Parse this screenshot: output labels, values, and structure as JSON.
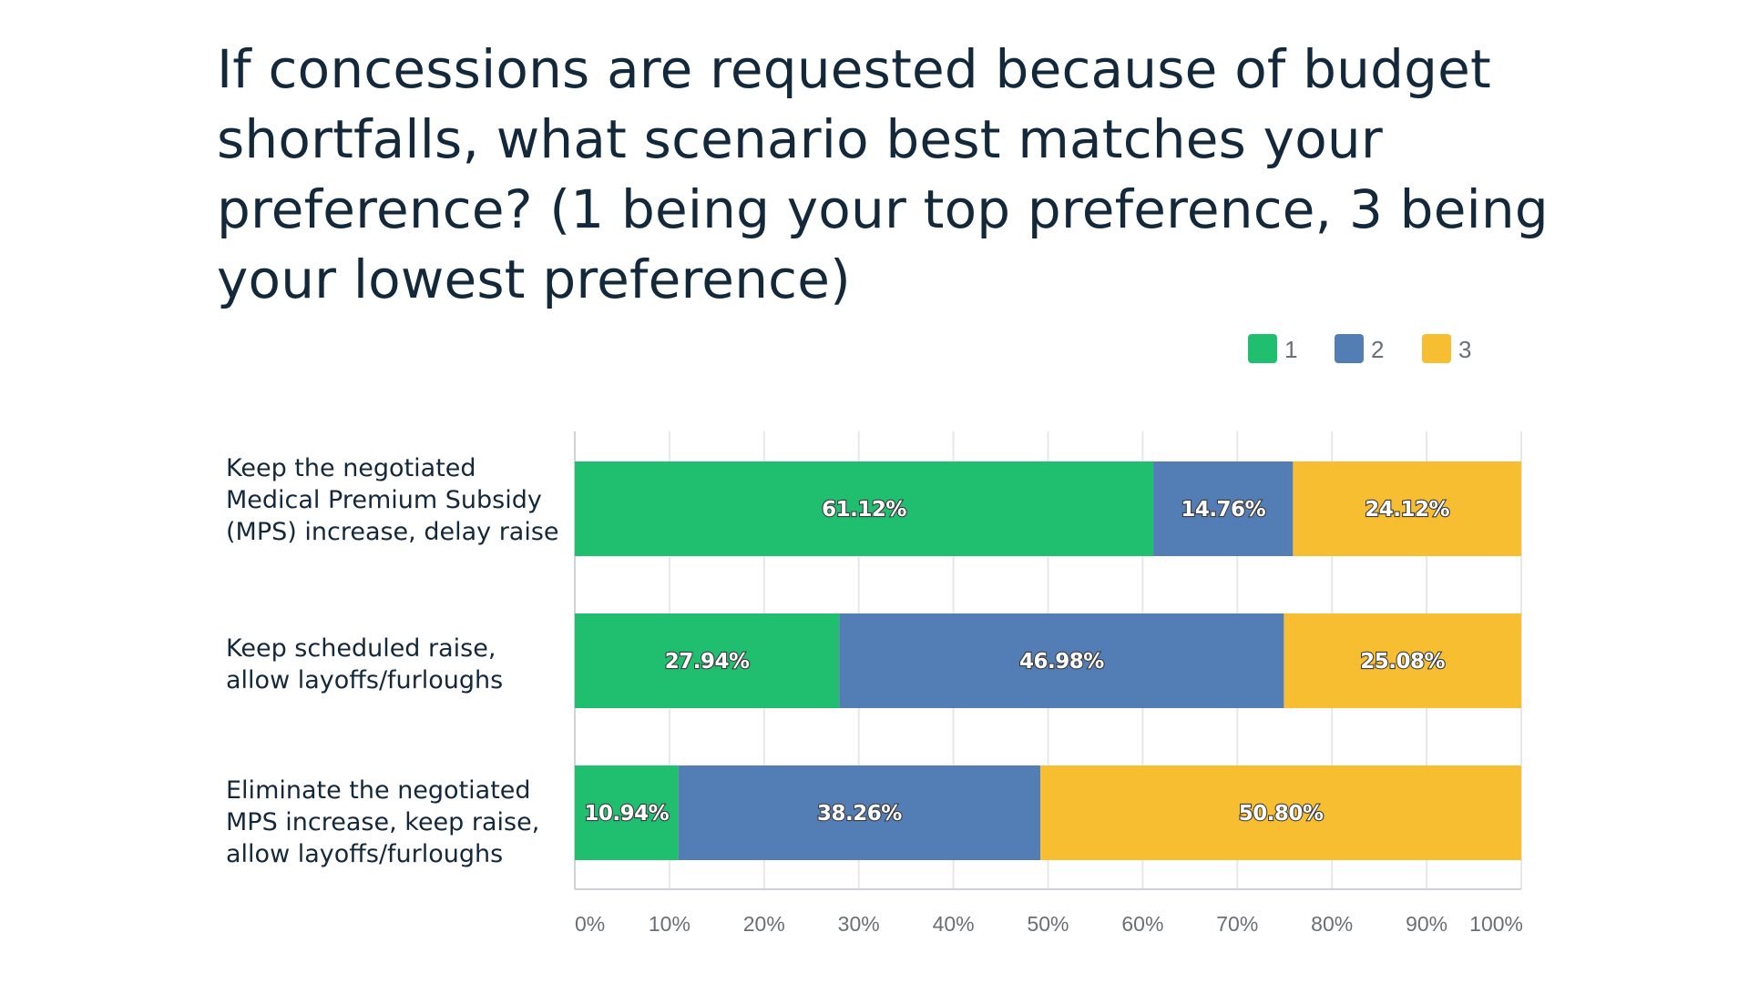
{
  "chart_data": {
    "type": "bar",
    "orientation": "horizontal",
    "stacked": true,
    "title": "If concessions are requested because of budget shortfalls, what scenario best matches your preference? (1 being your top preference, 3 being your lowest preference)",
    "title_lines": [
      "If concessions are requested because of budget",
      "shortfalls, what scenario best matches your",
      "preference? (1 being your top preference, 3 being",
      "your lowest preference)"
    ],
    "categories": [
      "Keep the negotiated Medical Premium Subsidy (MPS) increase, delay raise",
      "Keep scheduled raise, allow layoffs/furloughs",
      "Eliminate the negotiated MPS increase, keep raise, allow layoffs/furloughs"
    ],
    "category_lines": [
      [
        "Keep the negotiated",
        "Medical Premium Subsidy",
        "(MPS) increase, delay raise"
      ],
      [
        "Keep scheduled raise,",
        "allow layoffs/furloughs"
      ],
      [
        "Eliminate the negotiated",
        "MPS increase, keep raise,",
        "allow layoffs/furloughs"
      ]
    ],
    "series": [
      {
        "name": "1",
        "color": "#20bf6f",
        "values": [
          61.12,
          27.94,
          10.94
        ],
        "labels": [
          "61.12%",
          "27.94%",
          "10.94%"
        ]
      },
      {
        "name": "2",
        "color": "#527db5",
        "values": [
          14.76,
          46.98,
          38.26
        ],
        "labels": [
          "14.76%",
          "46.98%",
          "38.26%"
        ]
      },
      {
        "name": "3",
        "color": "#f8be31",
        "values": [
          24.12,
          25.08,
          50.8
        ],
        "labels": [
          "24.12%",
          "25.08%",
          "50.80%"
        ]
      }
    ],
    "x_ticks": [
      "0%",
      "10%",
      "20%",
      "30%",
      "40%",
      "50%",
      "60%",
      "70%",
      "80%",
      "90%",
      "100%"
    ],
    "xlim": [
      0,
      100
    ],
    "grid": true,
    "legend_position": "top-right"
  }
}
